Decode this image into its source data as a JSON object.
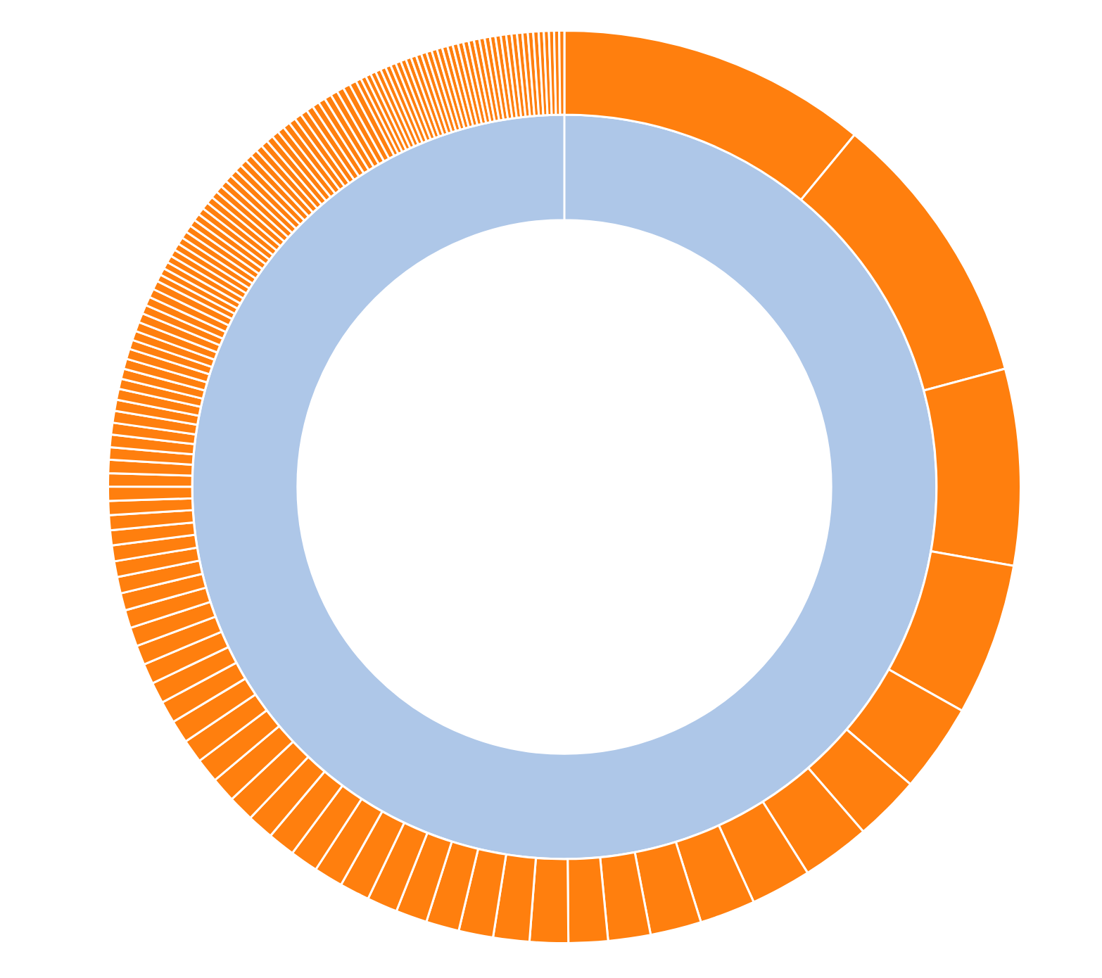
{
  "chart_data": {
    "type": "donut",
    "series": [
      {
        "color": "#ff7f0e",
        "values": [
          10.97,
          9.86,
          6.94,
          5.39,
          3.14,
          2.33,
          2.42,
          2.14,
          1.97,
          1.81,
          1.5,
          1.39,
          1.36,
          1.28,
          1.22,
          1.17,
          1.11,
          1.08,
          1.06,
          1.03,
          1.0,
          0.97,
          0.94,
          0.92,
          0.89,
          0.86,
          0.83,
          0.81,
          0.78,
          0.75,
          0.72,
          0.69,
          0.67,
          0.64,
          0.61,
          0.58,
          0.56,
          0.56,
          0.53,
          0.53,
          0.5,
          0.5,
          0.47,
          0.47,
          0.44,
          0.44,
          0.42,
          0.42,
          0.39,
          0.39,
          0.36,
          0.36,
          0.36,
          0.36,
          0.33,
          0.33,
          0.33,
          0.33,
          0.31,
          0.31,
          0.31,
          0.31,
          0.25,
          0.25,
          0.25,
          0.25,
          0.25,
          0.25,
          0.25,
          0.25,
          0.25,
          0.25,
          0.25,
          0.25,
          0.25,
          0.25,
          0.25,
          0.25,
          0.25,
          0.25,
          0.25,
          0.25,
          0.25,
          0.25,
          0.25,
          0.25,
          0.25,
          0.25,
          0.25,
          0.25,
          0.25,
          0.25,
          0.25,
          0.25,
          0.25,
          0.25,
          0.25,
          0.25,
          0.25,
          0.25,
          0.25,
          0.25,
          0.19,
          0.19,
          0.19,
          0.19,
          0.19,
          0.19,
          0.19,
          0.19,
          0.19,
          0.19,
          0.19,
          0.19,
          0.19,
          0.19,
          0.19,
          0.19,
          0.19,
          0.19,
          0.19,
          0.19,
          0.19,
          0.19,
          0.19,
          0.19,
          0.19,
          0.19,
          0.19,
          0.19,
          0.19,
          0.19,
          0.19,
          0.19,
          0.19,
          0.19,
          0.19,
          0.18,
          0.18,
          0.18,
          0.18,
          0.18
        ]
      },
      {
        "color": "#aec7e8",
        "values": [
          100
        ]
      }
    ]
  }
}
